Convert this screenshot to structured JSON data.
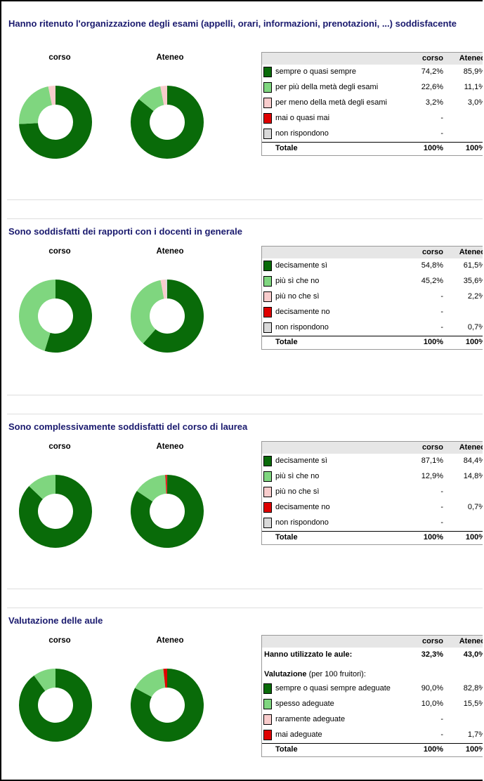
{
  "sections": [
    {
      "title": "Hanno ritenuto l'organizzazione degli esami (appelli, orari, informazioni, prenotazioni, ...) soddisfacente",
      "columns": [
        "corso",
        "Ateneo"
      ],
      "rows": [
        {
          "label": "sempre o quasi sempre",
          "color": "#096b09",
          "values": [
            74.2,
            85.9
          ],
          "value_labels": [
            "74,2%",
            "85,9%"
          ]
        },
        {
          "label": "per più della metà degli esami",
          "color": "#7fd67f",
          "values": [
            22.6,
            11.1
          ],
          "value_labels": [
            "22,6%",
            "11,1%"
          ]
        },
        {
          "label": "per meno della metà degli esami",
          "color": "#f8cccc",
          "values": [
            3.2,
            3.0
          ],
          "value_labels": [
            "3,2%",
            "3,0%"
          ]
        },
        {
          "label": "mai o quasi mai",
          "color": "#e00000",
          "values": [
            null,
            null
          ],
          "value_labels": [
            "-",
            "-"
          ]
        },
        {
          "label": "non rispondono",
          "color": "#d9d9d9",
          "values": [
            null,
            null
          ],
          "value_labels": [
            "-",
            "-"
          ]
        }
      ],
      "total": {
        "label": "Totale",
        "value_labels": [
          "100%",
          "100%"
        ]
      }
    },
    {
      "title": "Sono soddisfatti dei rapporti con i docenti in generale",
      "columns": [
        "corso",
        "Ateneo"
      ],
      "rows": [
        {
          "label": "decisamente sì",
          "color": "#096b09",
          "values": [
            54.8,
            61.5
          ],
          "value_labels": [
            "54,8%",
            "61,5%"
          ]
        },
        {
          "label": "più sì che no",
          "color": "#7fd67f",
          "values": [
            45.2,
            35.6
          ],
          "value_labels": [
            "45,2%",
            "35,6%"
          ]
        },
        {
          "label": "più no che sì",
          "color": "#f8cccc",
          "values": [
            null,
            2.2
          ],
          "value_labels": [
            "-",
            "2,2%"
          ]
        },
        {
          "label": "decisamente no",
          "color": "#e00000",
          "values": [
            null,
            null
          ],
          "value_labels": [
            "-",
            "-"
          ]
        },
        {
          "label": "non rispondono",
          "color": "#d9d9d9",
          "values": [
            null,
            0.7
          ],
          "value_labels": [
            "-",
            "0,7%"
          ]
        }
      ],
      "total": {
        "label": "Totale",
        "value_labels": [
          "100%",
          "100%"
        ]
      }
    },
    {
      "title": "Sono complessivamente soddisfatti del corso di laurea",
      "columns": [
        "corso",
        "Ateneo"
      ],
      "rows": [
        {
          "label": "decisamente sì",
          "color": "#096b09",
          "values": [
            87.1,
            84.4
          ],
          "value_labels": [
            "87,1%",
            "84,4%"
          ]
        },
        {
          "label": "più sì che no",
          "color": "#7fd67f",
          "values": [
            12.9,
            14.8
          ],
          "value_labels": [
            "12,9%",
            "14,8%"
          ]
        },
        {
          "label": "più no che sì",
          "color": "#f8cccc",
          "values": [
            null,
            null
          ],
          "value_labels": [
            "-",
            "-"
          ]
        },
        {
          "label": "decisamente no",
          "color": "#e00000",
          "values": [
            null,
            0.7
          ],
          "value_labels": [
            "-",
            "0,7%"
          ]
        },
        {
          "label": "non rispondono",
          "color": "#d9d9d9",
          "values": [
            null,
            null
          ],
          "value_labels": [
            "-",
            "-"
          ]
        }
      ],
      "total": {
        "label": "Totale",
        "value_labels": [
          "100%",
          "100%"
        ]
      }
    },
    {
      "title": "Valutazione delle aule",
      "columns": [
        "corso",
        "Ateneo"
      ],
      "usage": {
        "label": "Hanno utilizzato le aule:",
        "value_labels": [
          "32,3%",
          "43,0%"
        ]
      },
      "subheading": {
        "bold": "Valutazione",
        "rest": " (per 100 fruitori):"
      },
      "rows": [
        {
          "label": "sempre o quasi sempre adeguate",
          "color": "#096b09",
          "values": [
            90.0,
            82.8
          ],
          "value_labels": [
            "90,0%",
            "82,8%"
          ]
        },
        {
          "label": "spesso adeguate",
          "color": "#7fd67f",
          "values": [
            10.0,
            15.5
          ],
          "value_labels": [
            "10,0%",
            "15,5%"
          ]
        },
        {
          "label": "raramente adeguate",
          "color": "#f8cccc",
          "values": [
            null,
            null
          ],
          "value_labels": [
            "-",
            "-"
          ]
        },
        {
          "label": "mai adeguate",
          "color": "#e00000",
          "values": [
            null,
            1.7
          ],
          "value_labels": [
            "-",
            "1,7%"
          ]
        }
      ],
      "total": {
        "label": "Totale",
        "value_labels": [
          "100%",
          "100%"
        ]
      }
    }
  ]
}
